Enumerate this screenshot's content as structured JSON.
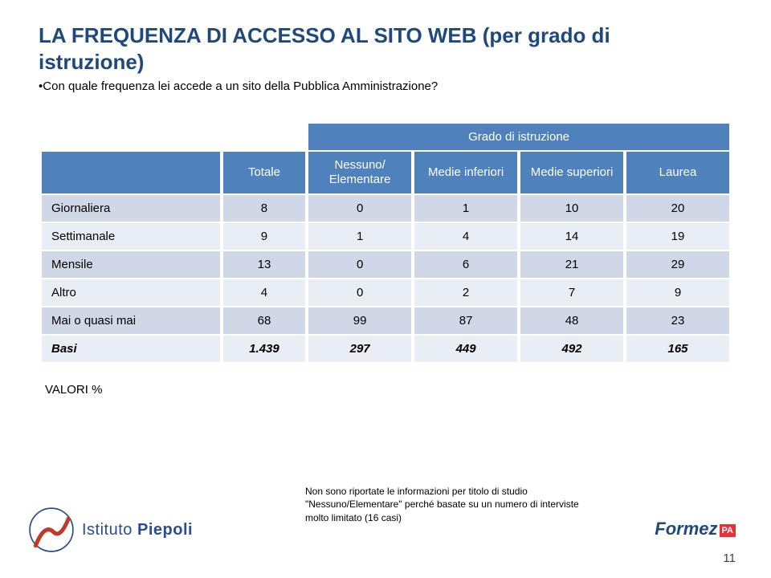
{
  "title_line1": "LA FREQUENZA DI ACCESSO AL SITO WEB (per grado di",
  "title_line2": "istruzione)",
  "subtitle_bullet": "•",
  "subtitle": "Con quale frequenza lei accede a un sito della Pubblica Amministrazione?",
  "table": {
    "header_group": "Grado di istruzione",
    "columns": [
      "Totale",
      "Nessuno/ Elementare",
      "Medie inferiori",
      "Medie superiori",
      "Laurea"
    ],
    "rows": [
      {
        "label": "Giornaliera",
        "cells": [
          "8",
          "0",
          "1",
          "10",
          "20"
        ]
      },
      {
        "label": "Settimanale",
        "cells": [
          "9",
          "1",
          "4",
          "14",
          "19"
        ]
      },
      {
        "label": "Mensile",
        "cells": [
          "13",
          "0",
          "6",
          "21",
          "29"
        ]
      },
      {
        "label": "Altro",
        "cells": [
          "4",
          "0",
          "2",
          "7",
          "9"
        ]
      },
      {
        "label": "Mai o quasi mai",
        "cells": [
          "68",
          "99",
          "87",
          "48",
          "23"
        ]
      },
      {
        "label": "Basi",
        "cells": [
          "1.439",
          "297",
          "449",
          "492",
          "165"
        ],
        "basi": true
      }
    ],
    "col_widths": [
      "26%",
      "12%",
      "15%",
      "15%",
      "15%",
      "15%"
    ],
    "colors": {
      "header_bg": "#4f81bd",
      "header_text": "#ffffff",
      "row_odd_bg": "#d0d8e8",
      "row_even_bg": "#e9edf4"
    }
  },
  "valori_label": "VALORI %",
  "note_line1": "Non sono riportate le informazioni per titolo di studio",
  "note_line2": "\"Nessuno/Elementare\" perché basate su un numero di interviste",
  "note_line3": "molto limitato (16 casi)",
  "footer": {
    "piepoli_plain": "Istituto ",
    "piepoli_bold": "Piepoli",
    "formez": "Formez",
    "pa": "PA"
  },
  "page_number": "11"
}
